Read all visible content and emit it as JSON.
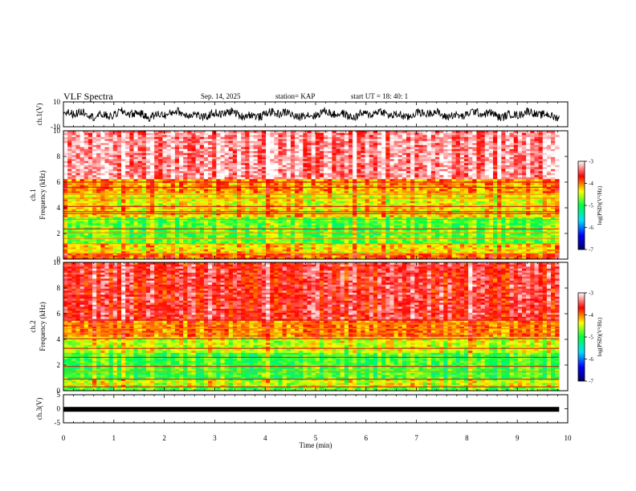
{
  "header": {
    "title": "VLF Spectra",
    "date": "Sep. 14, 2025",
    "station": "station= KAP",
    "start_ut": "start  UT  =   18: 40: 1"
  },
  "chart_data": [
    {
      "type": "line",
      "name": "ch1-waveform",
      "ylabel": "ch.1(V)",
      "ylim": [
        -10,
        10
      ],
      "yticks": [
        "10",
        "-10"
      ],
      "xlim": [
        0,
        10
      ],
      "series_color": "#000000"
    },
    {
      "type": "heatmap",
      "name": "ch1-spectrogram",
      "ylabel_line1": "ch.1",
      "ylabel_line2": "Frequency (kHz)",
      "ylim": [
        0,
        10
      ],
      "yticks": [
        "0",
        "2",
        "4",
        "6",
        "8",
        "10"
      ],
      "xlim": [
        0,
        9.83
      ],
      "colorbar": {
        "label": "log(PSD)(V²/Hz)",
        "range": [
          -7,
          -3
        ],
        "ticks": [
          "-3",
          "-4",
          "-5",
          "-6",
          "-7"
        ],
        "colors": [
          "#000066",
          "#0000ff",
          "#00e0ff",
          "#00ff40",
          "#ffff00",
          "#ff0000",
          "#ffffff"
        ]
      }
    },
    {
      "type": "heatmap",
      "name": "ch2-spectrogram",
      "ylabel_line1": "ch.2",
      "ylabel_line2": "Frequency (kHz)",
      "ylim": [
        0,
        10
      ],
      "yticks": [
        "0",
        "2",
        "4",
        "6",
        "8",
        "10"
      ],
      "xlim": [
        0,
        9.83
      ],
      "colorbar": {
        "label": "log(PSD)(V²/Hz)",
        "range": [
          -7,
          -3
        ],
        "ticks": [
          "-3",
          "-4",
          "-5",
          "-6",
          "-7"
        ],
        "colors": [
          "#000066",
          "#0000ff",
          "#00e0ff",
          "#00ff40",
          "#ffff00",
          "#ff0000",
          "#ffffff"
        ]
      }
    },
    {
      "type": "line",
      "name": "ch3-waveform",
      "ylabel": "ch.3(V)",
      "ylim": [
        -5,
        5
      ],
      "yticks": [
        "5",
        "0",
        "-5"
      ],
      "series_level": -0.2,
      "series_color": "#000000"
    }
  ],
  "xaxis": {
    "label": "Time (min)",
    "range": [
      0,
      10
    ],
    "ticks": [
      "0",
      "1",
      "2",
      "3",
      "4",
      "5",
      "6",
      "7",
      "8",
      "9",
      "10"
    ]
  }
}
